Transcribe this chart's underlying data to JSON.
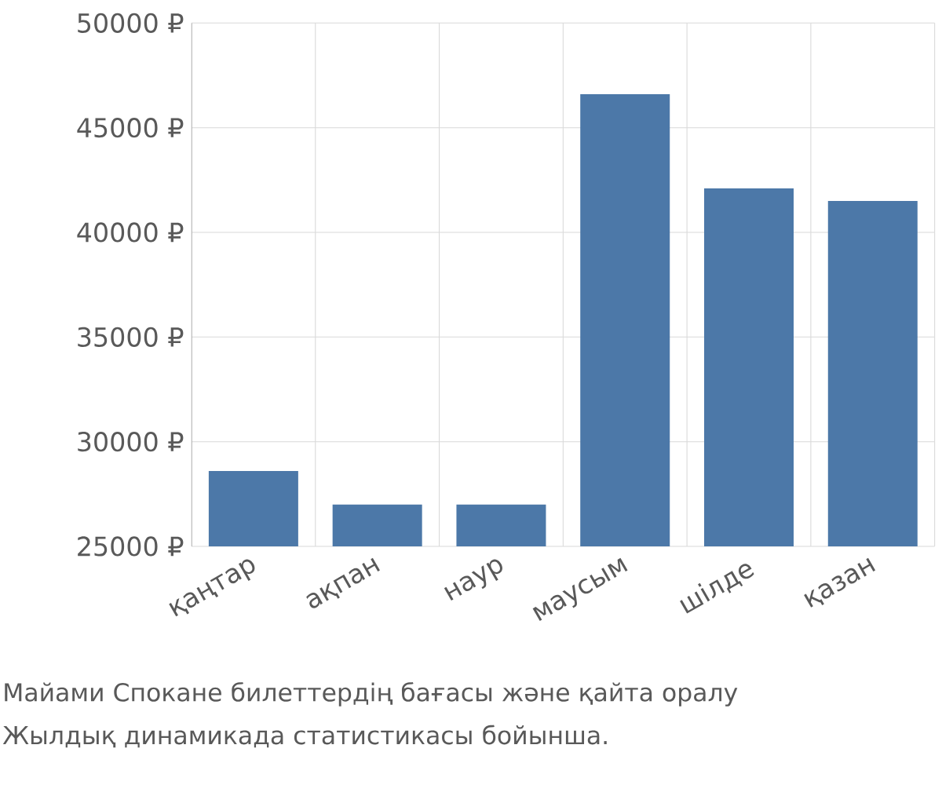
{
  "chart_data": {
    "type": "bar",
    "categories": [
      "қаңтар",
      "ақпан",
      "наур",
      "маусым",
      "шілде",
      "қазан"
    ],
    "values": [
      28600,
      27000,
      27000,
      46600,
      42100,
      41500
    ],
    "color": "#4c78a8",
    "ylim": [
      25000,
      50000
    ],
    "yticks": [
      {
        "value": 25000,
        "label": "25000 ₽"
      },
      {
        "value": 30000,
        "label": "30000 ₽"
      },
      {
        "value": 35000,
        "label": "35000 ₽"
      },
      {
        "value": 40000,
        "label": "40000 ₽"
      },
      {
        "value": 45000,
        "label": "45000 ₽"
      },
      {
        "value": 50000,
        "label": "50000 ₽"
      }
    ],
    "grid": true,
    "annotations": [
      "Майами Спокане билеттердің бағасы және қайта оралу",
      "Жылдық динамикада статистикасы бойынша."
    ]
  }
}
